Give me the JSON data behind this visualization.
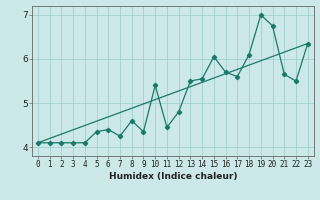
{
  "xlabel": "Humidex (Indice chaleur)",
  "x_data": [
    0,
    1,
    2,
    3,
    4,
    5,
    6,
    7,
    8,
    9,
    10,
    11,
    12,
    13,
    14,
    15,
    16,
    17,
    18,
    19,
    20,
    21,
    22,
    23
  ],
  "y_data": [
    4.1,
    4.1,
    4.1,
    4.1,
    4.1,
    4.35,
    4.4,
    4.25,
    4.6,
    4.35,
    5.4,
    4.45,
    4.8,
    5.5,
    5.55,
    6.05,
    5.7,
    5.6,
    6.1,
    7.0,
    6.75,
    5.65,
    5.5,
    6.35
  ],
  "trend_x": [
    0,
    23
  ],
  "trend_y": [
    4.1,
    6.35
  ],
  "line_color": "#1a7a6a",
  "bg_color": "#cce8e8",
  "grid_color": "#99cccc",
  "ylim": [
    3.8,
    7.2
  ],
  "xlim": [
    -0.5,
    23.5
  ],
  "yticks": [
    4,
    5,
    6,
    7
  ],
  "xticks": [
    0,
    1,
    2,
    3,
    4,
    5,
    6,
    7,
    8,
    9,
    10,
    11,
    12,
    13,
    14,
    15,
    16,
    17,
    18,
    19,
    20,
    21,
    22,
    23
  ],
  "xlabel_fontsize": 6.5,
  "ylabel_fontsize": 6.5,
  "tick_fontsize": 5.5
}
